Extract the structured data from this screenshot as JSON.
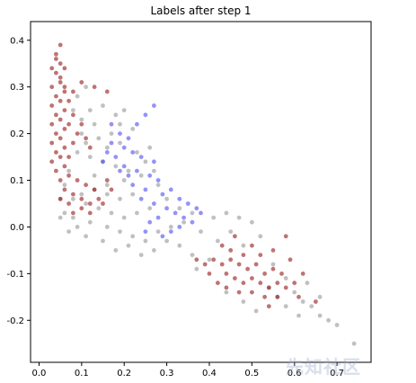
{
  "chart_data": {
    "type": "scatter",
    "title": "Labels after step 1",
    "xlabel": "",
    "ylabel": "",
    "xlim": [
      -0.02,
      0.78
    ],
    "ylim": [
      -0.29,
      0.44
    ],
    "x_ticks": [
      "0.0",
      "0.1",
      "0.2",
      "0.3",
      "0.4",
      "0.5",
      "0.6",
      "0.7"
    ],
    "y_ticks": [
      "0.4",
      "0.3",
      "0.2",
      "0.1",
      "0.0",
      "-0.1",
      "-0.2"
    ],
    "grid": false,
    "legend": "none",
    "colors": {
      "red": "#8b0000",
      "gray": "#8c8c8c",
      "blue": "#3a3af0",
      "border": "#000000"
    },
    "series": [
      {
        "color_key": "gray",
        "points": [
          [
            0.1,
            0.23
          ],
          [
            0.12,
            0.25
          ],
          [
            0.15,
            0.26
          ],
          [
            0.18,
            0.24
          ],
          [
            0.2,
            0.25
          ],
          [
            0.19,
            0.22
          ],
          [
            0.22,
            0.21
          ],
          [
            0.17,
            0.2
          ],
          [
            0.14,
            0.19
          ],
          [
            0.11,
            0.18
          ],
          [
            0.09,
            0.16
          ],
          [
            0.12,
            0.15
          ],
          [
            0.15,
            0.14
          ],
          [
            0.18,
            0.13
          ],
          [
            0.21,
            0.12
          ],
          [
            0.24,
            0.11
          ],
          [
            0.2,
            0.1
          ],
          [
            0.16,
            0.09
          ],
          [
            0.13,
            0.08
          ],
          [
            0.1,
            0.07
          ],
          [
            0.08,
            0.06
          ],
          [
            0.11,
            0.05
          ],
          [
            0.14,
            0.04
          ],
          [
            0.17,
            0.03
          ],
          [
            0.2,
            0.02
          ],
          [
            0.23,
            0.03
          ],
          [
            0.26,
            0.04
          ],
          [
            0.19,
            0.06
          ],
          [
            0.16,
            0.07
          ],
          [
            0.13,
            0.11
          ],
          [
            0.07,
            0.12
          ],
          [
            0.06,
            0.09
          ],
          [
            0.05,
            0.06
          ],
          [
            0.06,
            0.03
          ],
          [
            0.08,
            0.02
          ],
          [
            0.12,
            0.01
          ],
          [
            0.16,
            0.0
          ],
          [
            0.19,
            -0.01
          ],
          [
            0.22,
            -0.02
          ],
          [
            0.25,
            -0.03
          ],
          [
            0.28,
            -0.01
          ],
          [
            0.31,
            0.0
          ],
          [
            0.27,
            -0.05
          ],
          [
            0.24,
            -0.06
          ],
          [
            0.21,
            -0.04
          ],
          [
            0.18,
            -0.05
          ],
          [
            0.15,
            -0.03
          ],
          [
            0.3,
            0.06
          ],
          [
            0.33,
            0.04
          ],
          [
            0.36,
            0.03
          ],
          [
            0.34,
            0.01
          ],
          [
            0.38,
            -0.01
          ],
          [
            0.41,
            0.02
          ],
          [
            0.44,
            0.03
          ],
          [
            0.47,
            0.02
          ],
          [
            0.5,
            0.01
          ],
          [
            0.45,
            -0.01
          ],
          [
            0.42,
            -0.03
          ],
          [
            0.48,
            -0.04
          ],
          [
            0.52,
            -0.02
          ],
          [
            0.4,
            -0.07
          ],
          [
            0.37,
            -0.09
          ],
          [
            0.36,
            -0.06
          ],
          [
            0.55,
            -0.08
          ],
          [
            0.58,
            -0.11
          ],
          [
            0.6,
            -0.14
          ],
          [
            0.62,
            -0.16
          ],
          [
            0.64,
            -0.17
          ],
          [
            0.66,
            -0.19
          ],
          [
            0.68,
            -0.2
          ],
          [
            0.7,
            -0.21
          ],
          [
            0.61,
            -0.19
          ],
          [
            0.58,
            -0.17
          ],
          [
            0.56,
            -0.15
          ],
          [
            0.54,
            -0.13
          ],
          [
            0.74,
            -0.25
          ],
          [
            0.09,
            0.28
          ],
          [
            0.11,
            0.3
          ],
          [
            0.08,
            0.25
          ],
          [
            0.23,
            0.16
          ],
          [
            0.25,
            0.14
          ],
          [
            0.27,
            0.12
          ],
          [
            0.22,
            0.07
          ],
          [
            0.28,
            0.09
          ],
          [
            0.26,
            0.17
          ],
          [
            0.1,
            0.2
          ],
          [
            0.13,
            0.22
          ],
          [
            0.16,
            0.17
          ],
          [
            0.19,
            0.18
          ],
          [
            0.05,
            0.02
          ],
          [
            0.07,
            -0.01
          ],
          [
            0.09,
            0.0
          ],
          [
            0.11,
            -0.02
          ],
          [
            0.3,
            -0.03
          ],
          [
            0.33,
            -0.04
          ],
          [
            0.48,
            -0.16
          ],
          [
            0.51,
            -0.18
          ],
          [
            0.44,
            -0.14
          ],
          [
            0.66,
            -0.15
          ],
          [
            0.63,
            -0.12
          ]
        ]
      },
      {
        "color_key": "blue",
        "points": [
          [
            0.17,
            0.22
          ],
          [
            0.19,
            0.2
          ],
          [
            0.21,
            0.19
          ],
          [
            0.23,
            0.22
          ],
          [
            0.25,
            0.24
          ],
          [
            0.27,
            0.26
          ],
          [
            0.2,
            0.17
          ],
          [
            0.22,
            0.16
          ],
          [
            0.24,
            0.15
          ],
          [
            0.18,
            0.15
          ],
          [
            0.16,
            0.16
          ],
          [
            0.2,
            0.13
          ],
          [
            0.23,
            0.12
          ],
          [
            0.26,
            0.11
          ],
          [
            0.28,
            0.1
          ],
          [
            0.25,
            0.08
          ],
          [
            0.22,
            0.09
          ],
          [
            0.29,
            0.07
          ],
          [
            0.31,
            0.08
          ],
          [
            0.33,
            0.06
          ],
          [
            0.35,
            0.05
          ],
          [
            0.37,
            0.04
          ],
          [
            0.32,
            0.03
          ],
          [
            0.34,
            0.02
          ],
          [
            0.3,
            0.04
          ],
          [
            0.27,
            0.05
          ],
          [
            0.24,
            0.06
          ],
          [
            0.36,
            0.01
          ],
          [
            0.38,
            0.03
          ],
          [
            0.26,
            0.01
          ],
          [
            0.28,
            0.02
          ],
          [
            0.25,
            -0.01
          ],
          [
            0.29,
            -0.02
          ],
          [
            0.31,
            -0.01
          ],
          [
            0.33,
            0.0
          ],
          [
            0.21,
            0.11
          ],
          [
            0.19,
            0.12
          ],
          [
            0.17,
            0.18
          ],
          [
            0.15,
            0.14
          ],
          [
            0.27,
            0.14
          ]
        ]
      },
      {
        "color_key": "red",
        "points": [
          [
            0.05,
            0.39
          ],
          [
            0.04,
            0.37
          ],
          [
            0.05,
            0.35
          ],
          [
            0.04,
            0.33
          ],
          [
            0.05,
            0.31
          ],
          [
            0.03,
            0.3
          ],
          [
            0.06,
            0.29
          ],
          [
            0.04,
            0.28
          ],
          [
            0.05,
            0.27
          ],
          [
            0.03,
            0.26
          ],
          [
            0.06,
            0.25
          ],
          [
            0.04,
            0.24
          ],
          [
            0.05,
            0.23
          ],
          [
            0.03,
            0.22
          ],
          [
            0.06,
            0.21
          ],
          [
            0.07,
            0.22
          ],
          [
            0.04,
            0.2
          ],
          [
            0.05,
            0.19
          ],
          [
            0.03,
            0.18
          ],
          [
            0.06,
            0.17
          ],
          [
            0.04,
            0.16
          ],
          [
            0.05,
            0.15
          ],
          [
            0.03,
            0.14
          ],
          [
            0.07,
            0.15
          ],
          [
            0.08,
            0.18
          ],
          [
            0.09,
            0.2
          ],
          [
            0.1,
            0.22
          ],
          [
            0.08,
            0.24
          ],
          [
            0.11,
            0.19
          ],
          [
            0.12,
            0.17
          ],
          [
            0.04,
            0.12
          ],
          [
            0.05,
            0.1
          ],
          [
            0.06,
            0.08
          ],
          [
            0.05,
            0.06
          ],
          [
            0.07,
            0.05
          ],
          [
            0.08,
            0.07
          ],
          [
            0.1,
            0.06
          ],
          [
            0.12,
            0.05
          ],
          [
            0.14,
            0.06
          ],
          [
            0.13,
            0.08
          ],
          [
            0.11,
            0.09
          ],
          [
            0.09,
            0.1
          ],
          [
            0.07,
            0.11
          ],
          [
            0.06,
            0.13
          ],
          [
            0.08,
            0.03
          ],
          [
            0.1,
            0.04
          ],
          [
            0.12,
            0.03
          ],
          [
            0.15,
            0.05
          ],
          [
            0.17,
            0.08
          ],
          [
            0.16,
            0.1
          ],
          [
            0.05,
            0.32
          ],
          [
            0.06,
            0.34
          ],
          [
            0.04,
            0.36
          ],
          [
            0.03,
            0.34
          ],
          [
            0.06,
            0.3
          ],
          [
            0.07,
            0.27
          ],
          [
            0.08,
            0.29
          ],
          [
            0.1,
            0.31
          ],
          [
            0.13,
            0.3
          ],
          [
            0.16,
            0.29
          ],
          [
            0.41,
            -0.07
          ],
          [
            0.43,
            -0.08
          ],
          [
            0.45,
            -0.07
          ],
          [
            0.47,
            -0.08
          ],
          [
            0.49,
            -0.09
          ],
          [
            0.51,
            -0.08
          ],
          [
            0.53,
            -0.1
          ],
          [
            0.44,
            -0.1
          ],
          [
            0.46,
            -0.11
          ],
          [
            0.48,
            -0.12
          ],
          [
            0.5,
            -0.11
          ],
          [
            0.52,
            -0.12
          ],
          [
            0.54,
            -0.13
          ],
          [
            0.56,
            -0.12
          ],
          [
            0.42,
            -0.12
          ],
          [
            0.4,
            -0.1
          ],
          [
            0.45,
            -0.05
          ],
          [
            0.48,
            -0.06
          ],
          [
            0.5,
            -0.04
          ],
          [
            0.55,
            -0.09
          ],
          [
            0.57,
            -0.1
          ],
          [
            0.58,
            -0.13
          ],
          [
            0.6,
            -0.12
          ],
          [
            0.56,
            -0.15
          ],
          [
            0.53,
            -0.15
          ],
          [
            0.5,
            -0.14
          ],
          [
            0.47,
            -0.14
          ],
          [
            0.44,
            -0.13
          ],
          [
            0.39,
            -0.08
          ],
          [
            0.62,
            -0.1
          ],
          [
            0.46,
            -0.02
          ],
          [
            0.52,
            -0.06
          ],
          [
            0.59,
            -0.07
          ],
          [
            0.61,
            -0.15
          ],
          [
            0.65,
            -0.16
          ],
          [
            0.43,
            -0.04
          ],
          [
            0.37,
            -0.07
          ],
          [
            0.55,
            -0.05
          ],
          [
            0.58,
            -0.02
          ],
          [
            0.54,
            -0.17
          ]
        ]
      }
    ]
  },
  "watermark": {
    "text": "先知社区"
  }
}
